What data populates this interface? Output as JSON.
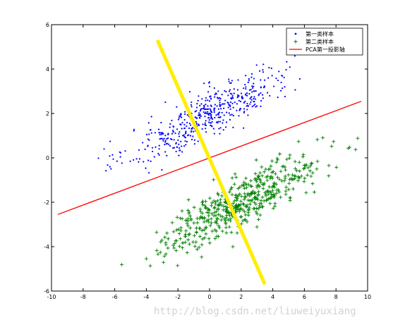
{
  "chart_data": {
    "type": "scatter",
    "xlim": [
      -10,
      10
    ],
    "ylim": [
      -6,
      6
    ],
    "x_ticks": [
      -10,
      -8,
      -6,
      -4,
      -2,
      0,
      2,
      4,
      6,
      8,
      10
    ],
    "y_ticks": [
      -6,
      -4,
      -2,
      0,
      2,
      4,
      6
    ],
    "grid": false,
    "legend_position": "top-right",
    "series": [
      {
        "name": "第一类样本",
        "marker": "dot",
        "color": "#0000ff",
        "count": 500,
        "center": [
          0.0,
          2.0
        ],
        "x_range": [
          -8.0,
          6.0
        ],
        "y_range": [
          -0.8,
          4.6
        ],
        "trend_slope": 0.37
      },
      {
        "name": "第二类样本",
        "marker": "plus",
        "color": "#008000",
        "count": 500,
        "center": [
          2.0,
          -2.0
        ],
        "x_range": [
          -8.0,
          9.5
        ],
        "y_range": [
          -5.1,
          1.5
        ],
        "trend_slope": 0.37
      },
      {
        "name": "PCA第一投影轴",
        "marker": "line",
        "color": "#ff0000",
        "x": [
          -9.6,
          9.6
        ],
        "y": [
          -2.55,
          2.55
        ]
      }
    ],
    "annotation_line": {
      "color": "#ffee00",
      "x": [
        -3.3,
        3.5
      ],
      "y": [
        5.3,
        -5.7
      ]
    }
  },
  "watermark_text": "http://blog.csdn.net/liuweiyuxiang"
}
